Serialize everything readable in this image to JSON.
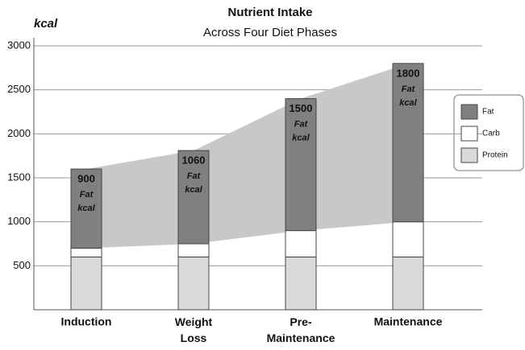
{
  "chart_data": {
    "type": "bar",
    "stacked": true,
    "title": "Nutrient Intake",
    "subtitle": "Across Four Diet Phases",
    "y_label": "kcal",
    "categories": [
      "Induction",
      "Weight Loss",
      "Pre-Maintenance",
      "Maintenance"
    ],
    "series": [
      {
        "name": "Protein",
        "color": "#d9d9d9",
        "values": [
          600,
          600,
          600,
          600
        ]
      },
      {
        "name": "Carb",
        "color": "#ffffff",
        "values": [
          100,
          150,
          300,
          400
        ]
      },
      {
        "name": "Fat",
        "color": "#808080",
        "values": [
          900,
          1060,
          1500,
          1800
        ]
      }
    ],
    "fat_note": [
      "Fat",
      "kcal"
    ],
    "band_color": "#c8c8c8",
    "ylim": [
      0,
      3000
    ],
    "yticks": [
      500,
      1000,
      1500,
      2000,
      2500,
      3000
    ],
    "grid": true,
    "legend": "right"
  }
}
